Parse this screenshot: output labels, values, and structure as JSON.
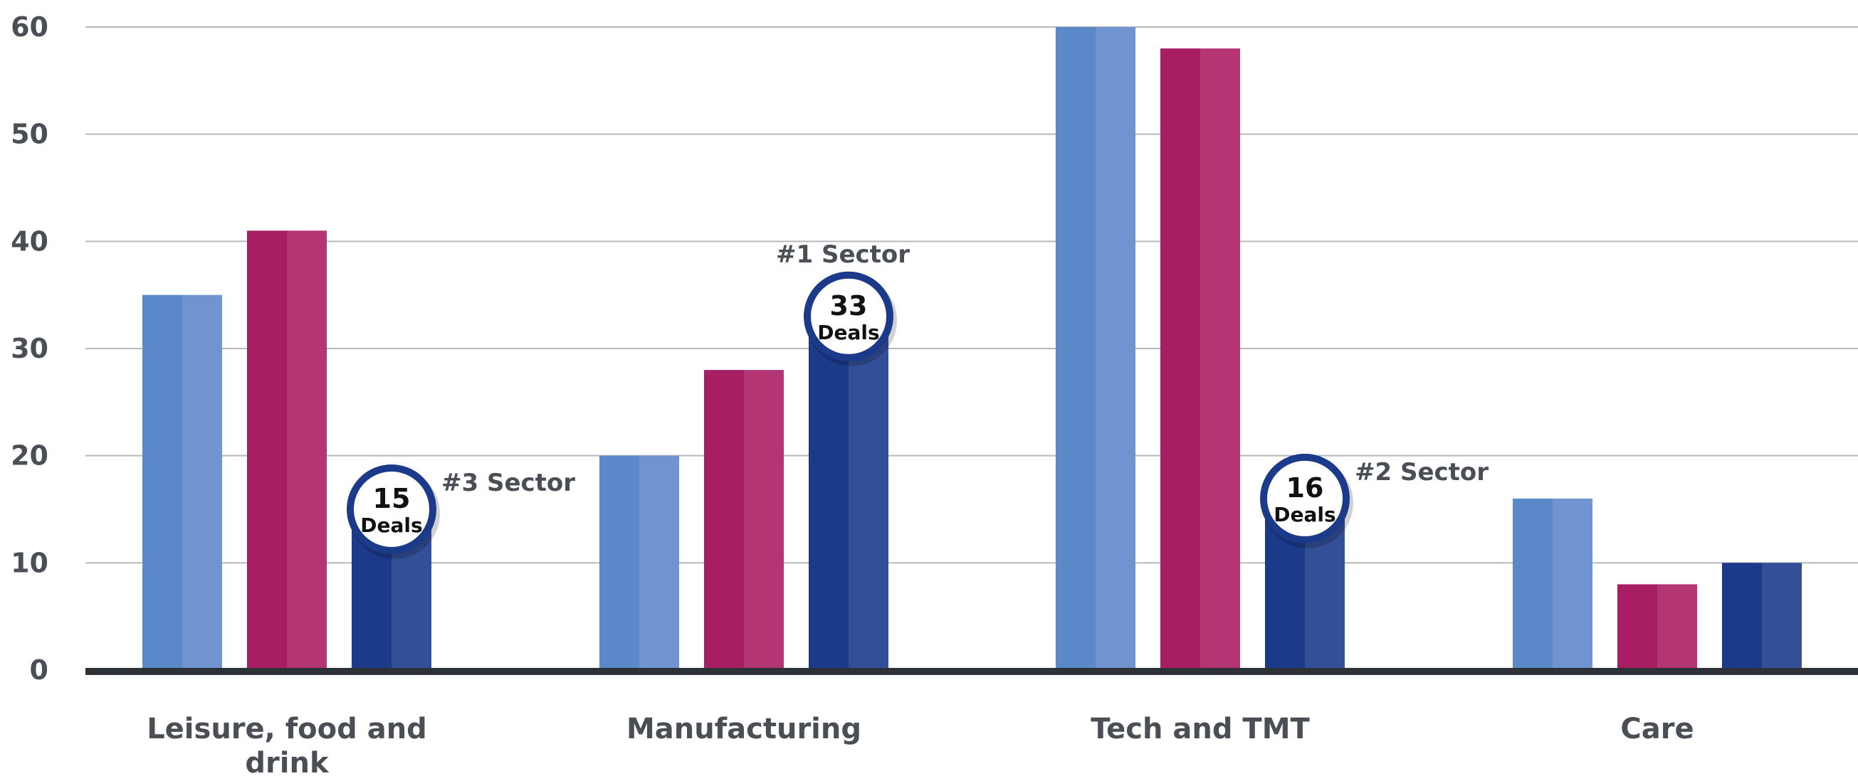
{
  "chart_data": {
    "type": "bar",
    "title": "",
    "xlabel": "",
    "ylabel": "",
    "ylim": [
      0,
      60
    ],
    "yticks": [
      "0",
      "10",
      "20",
      "30",
      "40",
      "50",
      "60"
    ],
    "categories": [
      [
        "Leisure, food and",
        "drink"
      ],
      [
        "Manufacturing"
      ],
      [
        "Tech and TMT"
      ],
      [
        "Care"
      ]
    ],
    "grid": true,
    "legend": "none",
    "series": [
      {
        "values": [
          35,
          20,
          60,
          16
        ],
        "color": "#5b88c9",
        "color_light": "#7094cf"
      },
      {
        "values": [
          41,
          28,
          58,
          8
        ],
        "color": "#a81e64",
        "color_light": "#b33574"
      },
      {
        "values": [
          15,
          33,
          16,
          10
        ],
        "color": "#1c3a8a",
        "color_light": "#324f97"
      }
    ],
    "badges": [
      {
        "category": 0,
        "series": 2,
        "number": "15",
        "label": "Deals",
        "note": "#3 Sector",
        "note_side": "right"
      },
      {
        "category": 1,
        "series": 2,
        "number": "33",
        "label": "Deals",
        "note": "#1 Sector",
        "note_side": "top"
      },
      {
        "category": 2,
        "series": 2,
        "number": "16",
        "label": "Deals",
        "note": "#2 Sector",
        "note_side": "right"
      }
    ],
    "colors": {
      "grid": "#b5b8bc",
      "axis": "#2c3238",
      "text": "#4a4f55",
      "badge_ring": "#1c3a8a"
    }
  }
}
